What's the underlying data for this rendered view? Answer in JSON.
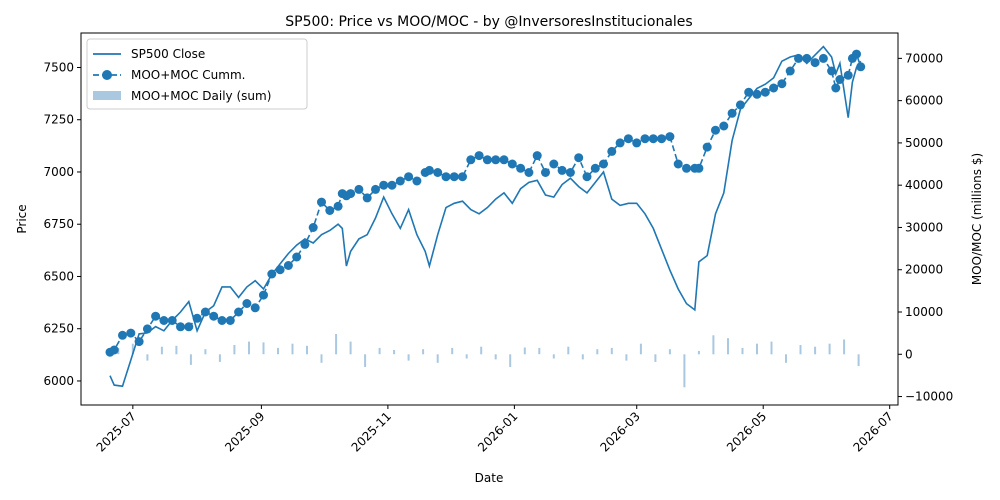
{
  "chart_data": {
    "type": "line",
    "title": "SP500: Price vs MOO/MOC   -   by @InversoresInstitucionales",
    "xlabel": "Date",
    "ylabel": "Price",
    "y2label": "MOO/MOC (millions $)",
    "xlim": [
      "2025-06-06",
      "2026-07-05"
    ],
    "ylim": [
      5885,
      7665
    ],
    "y2lim": [
      -12000,
      76000
    ],
    "x_ticks": [
      "2025-07",
      "2025-09",
      "2025-11",
      "2026-01",
      "2026-03",
      "2026-05",
      "2026-07"
    ],
    "y_ticks": [
      6000,
      6250,
      6500,
      6750,
      7000,
      7250,
      7500
    ],
    "y2_ticks": [
      -10000,
      0,
      10000,
      20000,
      30000,
      40000,
      50000,
      60000,
      70000
    ],
    "grid": false,
    "legend_position": "upper-left",
    "colors": {
      "main": "#1f77b4",
      "bars": "#aac8e0"
    },
    "series": [
      {
        "name": "SP500 Close",
        "axis": "left",
        "style": "solid",
        "x": [
          "2025-06-20",
          "2025-06-22",
          "2025-06-26",
          "2025-06-30",
          "2025-07-04",
          "2025-07-08",
          "2025-07-12",
          "2025-07-16",
          "2025-07-20",
          "2025-07-24",
          "2025-07-28",
          "2025-08-01",
          "2025-08-05",
          "2025-08-09",
          "2025-08-13",
          "2025-08-17",
          "2025-08-21",
          "2025-08-25",
          "2025-08-29",
          "2025-09-02",
          "2025-09-06",
          "2025-09-10",
          "2025-09-14",
          "2025-09-18",
          "2025-09-22",
          "2025-09-26",
          "2025-09-30",
          "2025-10-04",
          "2025-10-08",
          "2025-10-10",
          "2025-10-12",
          "2025-10-14",
          "2025-10-18",
          "2025-10-22",
          "2025-10-26",
          "2025-10-30",
          "2025-11-03",
          "2025-11-07",
          "2025-11-11",
          "2025-11-15",
          "2025-11-19",
          "2025-11-21",
          "2025-11-25",
          "2025-11-29",
          "2025-12-03",
          "2025-12-07",
          "2025-12-11",
          "2025-12-15",
          "2025-12-19",
          "2025-12-23",
          "2025-12-27",
          "2025-12-31",
          "2026-01-04",
          "2026-01-08",
          "2026-01-12",
          "2026-01-16",
          "2026-01-20",
          "2026-01-24",
          "2026-01-28",
          "2026-02-01",
          "2026-02-05",
          "2026-02-09",
          "2026-02-13",
          "2026-02-17",
          "2026-02-21",
          "2026-02-25",
          "2026-03-01",
          "2026-03-05",
          "2026-03-09",
          "2026-03-13",
          "2026-03-17",
          "2026-03-21",
          "2026-03-25",
          "2026-03-29",
          "2026-03-31",
          "2026-04-04",
          "2026-04-08",
          "2026-04-12",
          "2026-04-16",
          "2026-04-20",
          "2026-04-24",
          "2026-04-28",
          "2026-05-02",
          "2026-05-06",
          "2026-05-10",
          "2026-05-14",
          "2026-05-18",
          "2026-05-22",
          "2026-05-26",
          "2026-05-30",
          "2026-06-03",
          "2026-06-05",
          "2026-06-07",
          "2026-06-11",
          "2026-06-13",
          "2026-06-15",
          "2026-06-17"
        ],
        "values": [
          6025,
          5980,
          5975,
          6100,
          6225,
          6230,
          6260,
          6240,
          6290,
          6330,
          6380,
          6240,
          6330,
          6360,
          6450,
          6450,
          6400,
          6450,
          6480,
          6440,
          6510,
          6560,
          6610,
          6650,
          6680,
          6660,
          6700,
          6720,
          6750,
          6730,
          6550,
          6620,
          6680,
          6700,
          6780,
          6880,
          6800,
          6730,
          6820,
          6700,
          6620,
          6550,
          6700,
          6830,
          6850,
          6860,
          6820,
          6800,
          6830,
          6870,
          6900,
          6850,
          6920,
          6950,
          6960,
          6890,
          6880,
          6940,
          6970,
          6930,
          6900,
          6950,
          7000,
          6870,
          6840,
          6850,
          6850,
          6800,
          6730,
          6630,
          6530,
          6440,
          6370,
          6340,
          6570,
          6600,
          6800,
          6900,
          7150,
          7300,
          7350,
          7400,
          7420,
          7450,
          7530,
          7550,
          7560,
          7520,
          7560,
          7600,
          7550,
          7470,
          7520,
          7260,
          7430,
          7500,
          7530
        ]
      },
      {
        "name": "MOO+MOC Cumm.",
        "axis": "right",
        "style": "dashed-markers",
        "x": [
          "2025-06-20",
          "2025-06-22",
          "2025-06-26",
          "2025-06-30",
          "2025-07-04",
          "2025-07-08",
          "2025-07-12",
          "2025-07-16",
          "2025-07-20",
          "2025-07-24",
          "2025-07-28",
          "2025-08-01",
          "2025-08-05",
          "2025-08-09",
          "2025-08-13",
          "2025-08-17",
          "2025-08-21",
          "2025-08-25",
          "2025-08-29",
          "2025-09-02",
          "2025-09-06",
          "2025-09-10",
          "2025-09-14",
          "2025-09-18",
          "2025-09-22",
          "2025-09-26",
          "2025-09-30",
          "2025-10-04",
          "2025-10-08",
          "2025-10-10",
          "2025-10-12",
          "2025-10-14",
          "2025-10-18",
          "2025-10-22",
          "2025-10-26",
          "2025-10-30",
          "2025-11-03",
          "2025-11-07",
          "2025-11-11",
          "2025-11-15",
          "2025-11-19",
          "2025-11-21",
          "2025-11-25",
          "2025-11-29",
          "2025-12-03",
          "2025-12-07",
          "2025-12-11",
          "2025-12-15",
          "2025-12-19",
          "2025-12-23",
          "2025-12-27",
          "2025-12-31",
          "2026-01-04",
          "2026-01-08",
          "2026-01-12",
          "2026-01-16",
          "2026-01-20",
          "2026-01-24",
          "2026-01-28",
          "2026-02-01",
          "2026-02-05",
          "2026-02-09",
          "2026-02-13",
          "2026-02-17",
          "2026-02-21",
          "2026-02-25",
          "2026-03-01",
          "2026-03-05",
          "2026-03-09",
          "2026-03-13",
          "2026-03-17",
          "2026-03-21",
          "2026-03-25",
          "2026-03-29",
          "2026-03-31",
          "2026-04-04",
          "2026-04-08",
          "2026-04-12",
          "2026-04-16",
          "2026-04-20",
          "2026-04-24",
          "2026-04-28",
          "2026-05-02",
          "2026-05-06",
          "2026-05-10",
          "2026-05-14",
          "2026-05-18",
          "2026-05-22",
          "2026-05-26",
          "2026-05-30",
          "2026-06-03",
          "2026-06-05",
          "2026-06-07",
          "2026-06-11",
          "2026-06-13",
          "2026-06-15",
          "2026-06-17"
        ],
        "values": [
          500,
          1000,
          4500,
          5000,
          3000,
          6000,
          9000,
          8000,
          8000,
          6500,
          6500,
          8500,
          10000,
          9000,
          8000,
          8000,
          10000,
          12000,
          11000,
          14000,
          19000,
          20000,
          21000,
          23000,
          26000,
          30000,
          36000,
          34000,
          35000,
          38000,
          37500,
          38000,
          39000,
          37000,
          39000,
          40000,
          40000,
          41000,
          42000,
          41000,
          43000,
          43500,
          43000,
          42000,
          42000,
          42000,
          46000,
          47000,
          46000,
          46000,
          46000,
          45000,
          44000,
          43000,
          47000,
          43000,
          45000,
          43500,
          43000,
          46500,
          42000,
          44000,
          45000,
          48000,
          50000,
          51000,
          50000,
          51000,
          51000,
          51000,
          51500,
          45000,
          44000,
          44000,
          44000,
          49000,
          53000,
          54000,
          57000,
          59000,
          62000,
          61500,
          62000,
          63000,
          64000,
          67000,
          70000,
          70000,
          69000,
          70000,
          67000,
          63000,
          65000,
          66000,
          70000,
          71000,
          68000
        ]
      }
    ],
    "bars": {
      "name": "MOO+MOC Daily (sum)",
      "axis": "right",
      "x": [
        "2025-06-24",
        "2025-07-01",
        "2025-07-08",
        "2025-07-15",
        "2025-07-22",
        "2025-07-29",
        "2025-08-05",
        "2025-08-12",
        "2025-08-19",
        "2025-08-26",
        "2025-09-02",
        "2025-09-09",
        "2025-09-16",
        "2025-09-23",
        "2025-09-30",
        "2025-10-07",
        "2025-10-14",
        "2025-10-21",
        "2025-10-28",
        "2025-11-04",
        "2025-11-11",
        "2025-11-18",
        "2025-11-25",
        "2025-12-02",
        "2025-12-09",
        "2025-12-16",
        "2025-12-23",
        "2025-12-30",
        "2026-01-06",
        "2026-01-13",
        "2026-01-20",
        "2026-01-27",
        "2026-02-03",
        "2026-02-10",
        "2026-02-17",
        "2026-02-24",
        "2026-03-03",
        "2026-03-10",
        "2026-03-17",
        "2026-03-24",
        "2026-03-31",
        "2026-04-07",
        "2026-04-14",
        "2026-04-21",
        "2026-04-28",
        "2026-05-05",
        "2026-05-12",
        "2026-05-19",
        "2026-05-26",
        "2026-06-02",
        "2026-06-09",
        "2026-06-16"
      ],
      "values": [
        1500,
        2500,
        -1500,
        1800,
        2000,
        -2500,
        1200,
        -1800,
        2200,
        3000,
        2800,
        1500,
        2500,
        2000,
        -2000,
        4800,
        3000,
        -3000,
        1500,
        1000,
        -1500,
        1200,
        -2000,
        1500,
        -1000,
        1800,
        -1200,
        -3000,
        1600,
        1500,
        -1000,
        1800,
        -1200,
        1200,
        1500,
        -1500,
        2500,
        -1800,
        1200,
        -7800,
        800,
        4500,
        3800,
        1500,
        2500,
        3000,
        -2000,
        2200,
        1800,
        2500,
        3500,
        -2800
      ]
    }
  }
}
